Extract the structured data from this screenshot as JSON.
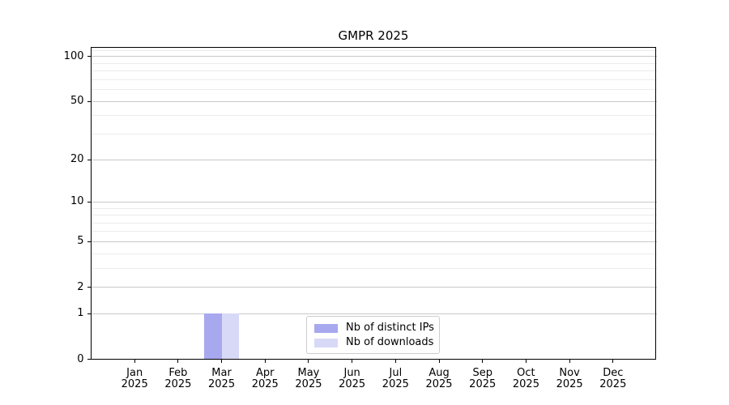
{
  "chart_data": {
    "type": "bar",
    "title": "GMPR 2025",
    "categories": [
      "Jan 2025",
      "Feb 2025",
      "Mar 2025",
      "Apr 2025",
      "May 2025",
      "Jun 2025",
      "Jul 2025",
      "Aug 2025",
      "Sep 2025",
      "Oct 2025",
      "Nov 2025",
      "Dec 2025"
    ],
    "series": [
      {
        "name": "Nb of distinct IPs",
        "color": "#a8a8ef",
        "values": [
          0,
          0,
          1,
          0,
          0,
          0,
          0,
          0,
          0,
          0,
          0,
          0
        ]
      },
      {
        "name": "Nb of downloads",
        "color": "#d8d8f7",
        "values": [
          0,
          0,
          1,
          0,
          0,
          0,
          0,
          0,
          0,
          0,
          0,
          0
        ]
      }
    ],
    "xlabel": "",
    "ylabel": "",
    "yscale": "log10(1+y)",
    "ylim": [
      0,
      116
    ],
    "yticks": [
      0,
      1,
      2,
      5,
      10,
      20,
      50,
      100
    ],
    "yticks_minor": [
      3,
      4,
      6,
      7,
      8,
      9,
      30,
      40,
      60,
      70,
      80,
      90,
      110
    ],
    "grid": "both",
    "legend_position": "lower center"
  },
  "colors": {
    "background": "#ffffff",
    "spine": "#000000",
    "grid_major": "#c8c8c8",
    "grid_minor": "#ebebeb",
    "tick_text": "#000000",
    "legend_border": "#cccccc",
    "legend_background": "#ffffff"
  }
}
